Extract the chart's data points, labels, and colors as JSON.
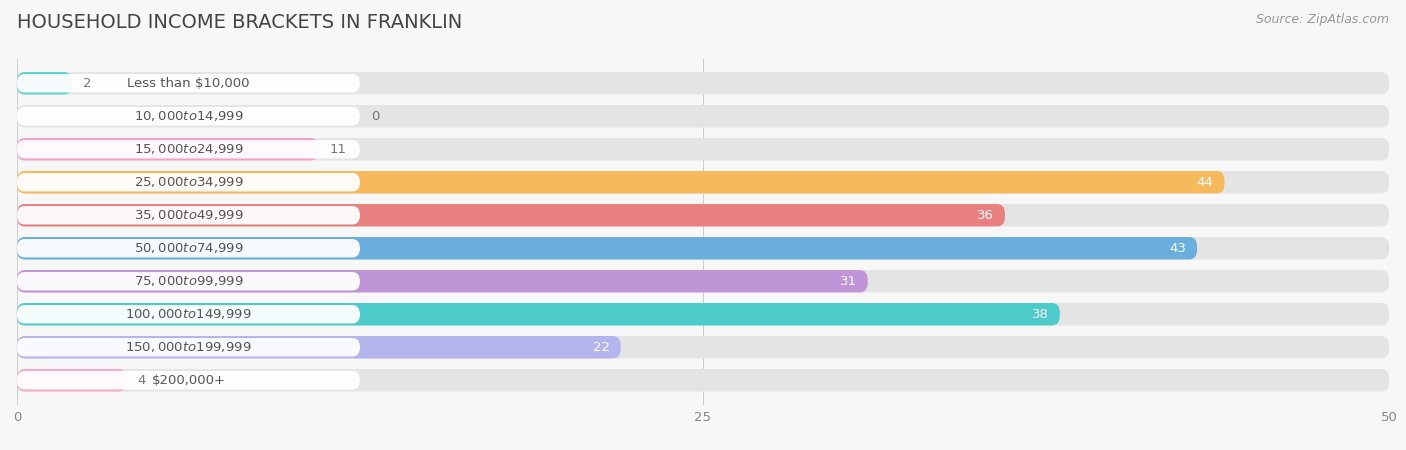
{
  "title": "HOUSEHOLD INCOME BRACKETS IN FRANKLIN",
  "source": "Source: ZipAtlas.com",
  "categories": [
    "Less than $10,000",
    "$10,000 to $14,999",
    "$15,000 to $24,999",
    "$25,000 to $34,999",
    "$35,000 to $49,999",
    "$50,000 to $74,999",
    "$75,000 to $99,999",
    "$100,000 to $149,999",
    "$150,000 to $199,999",
    "$200,000+"
  ],
  "values": [
    2,
    0,
    11,
    44,
    36,
    43,
    31,
    38,
    22,
    4
  ],
  "bar_colors": [
    "#5dd4ce",
    "#ababec",
    "#f5a0c5",
    "#f6b95c",
    "#e98080",
    "#6aaedd",
    "#c095d8",
    "#4dcbcb",
    "#b5b5ee",
    "#f5aac8"
  ],
  "xlim": [
    0,
    50
  ],
  "xticks": [
    0,
    25,
    50
  ],
  "background_color": "#f7f7f7",
  "bar_bg_color": "#e4e4e4",
  "title_color": "#444444",
  "label_text_color": "#555555",
  "value_text_color_inside": "white",
  "value_text_color_outside": "#777777",
  "title_fontsize": 14,
  "label_fontsize": 9.5,
  "value_fontsize": 9.5,
  "source_fontsize": 9
}
